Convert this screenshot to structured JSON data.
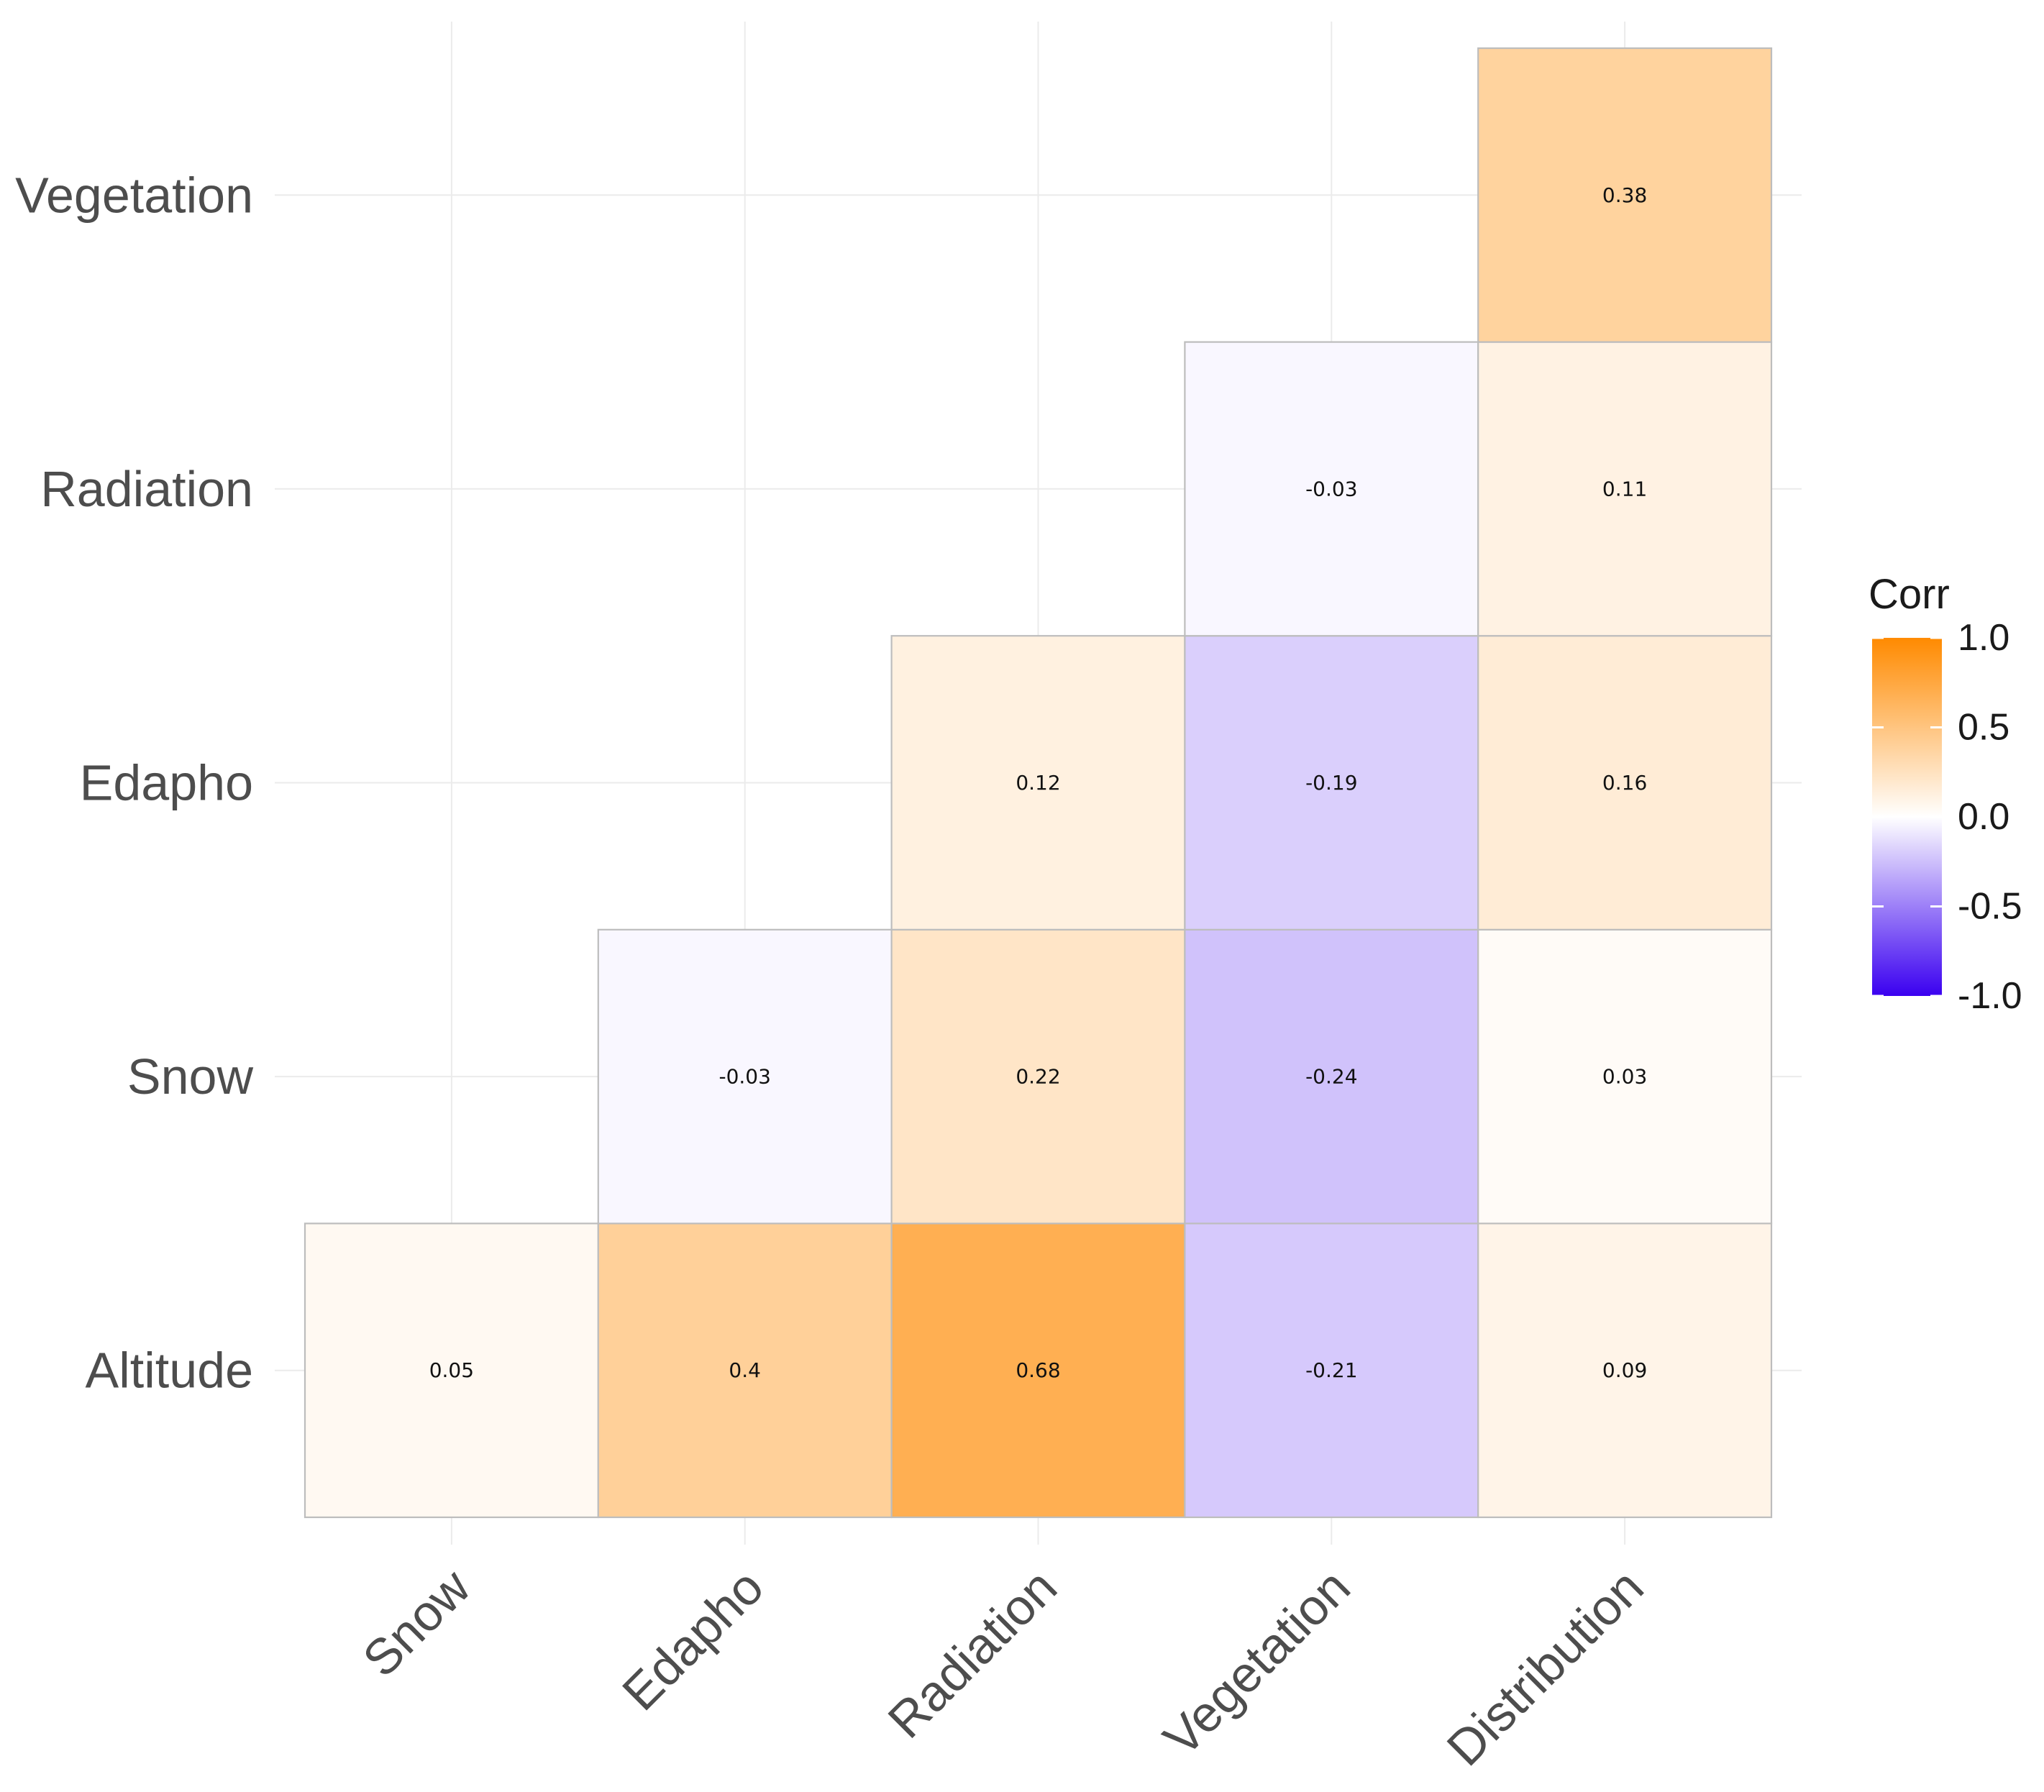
{
  "chart_data": {
    "type": "heatmap",
    "title": "",
    "xlabel": "",
    "ylabel": "",
    "x_categories": [
      "Snow",
      "Edapho",
      "Radiation",
      "Vegetation",
      "Distribution"
    ],
    "y_categories": [
      "Altitude",
      "Snow",
      "Edapho",
      "Radiation",
      "Vegetation"
    ],
    "cells": [
      {
        "x": "Snow",
        "y": "Altitude",
        "value": 0.05,
        "label": "0.05"
      },
      {
        "x": "Edapho",
        "y": "Altitude",
        "value": 0.4,
        "label": "0.4"
      },
      {
        "x": "Radiation",
        "y": "Altitude",
        "value": 0.68,
        "label": "0.68"
      },
      {
        "x": "Vegetation",
        "y": "Altitude",
        "value": -0.21,
        "label": "-0.21"
      },
      {
        "x": "Distribution",
        "y": "Altitude",
        "value": 0.09,
        "label": "0.09"
      },
      {
        "x": "Edapho",
        "y": "Snow",
        "value": -0.03,
        "label": "-0.03"
      },
      {
        "x": "Radiation",
        "y": "Snow",
        "value": 0.22,
        "label": "0.22"
      },
      {
        "x": "Vegetation",
        "y": "Snow",
        "value": -0.24,
        "label": "-0.24"
      },
      {
        "x": "Distribution",
        "y": "Snow",
        "value": 0.03,
        "label": "0.03"
      },
      {
        "x": "Radiation",
        "y": "Edapho",
        "value": 0.12,
        "label": "0.12"
      },
      {
        "x": "Vegetation",
        "y": "Edapho",
        "value": -0.19,
        "label": "-0.19"
      },
      {
        "x": "Distribution",
        "y": "Edapho",
        "value": 0.16,
        "label": "0.16"
      },
      {
        "x": "Vegetation",
        "y": "Radiation",
        "value": -0.03,
        "label": "-0.03"
      },
      {
        "x": "Distribution",
        "y": "Radiation",
        "value": 0.11,
        "label": "0.11"
      },
      {
        "x": "Distribution",
        "y": "Vegetation",
        "value": 0.38,
        "label": "0.38"
      }
    ],
    "legend": {
      "title": "Corr",
      "range": [
        -1.0,
        1.0
      ],
      "ticks": [
        "1.0",
        "0.5",
        "0.0",
        "-0.5",
        "-1.0"
      ],
      "placement": "right",
      "low_color": "#3a00f0",
      "mid_color": "#ffffff",
      "high_color": "#ff8a00"
    }
  }
}
